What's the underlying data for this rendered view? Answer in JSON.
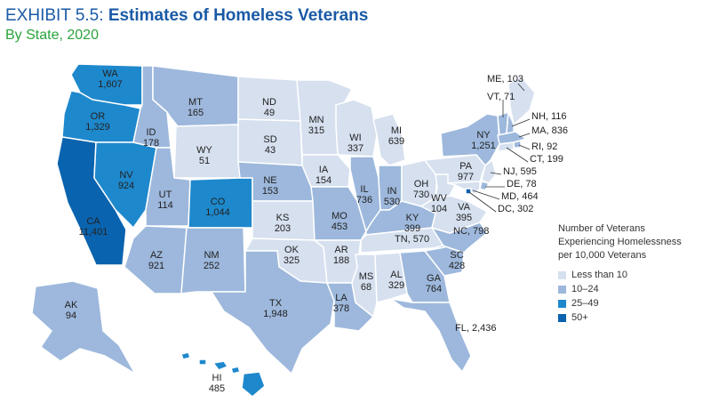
{
  "header": {
    "exhibit": "EXHIBIT 5.5:",
    "title": "Estimates of Homeless Veterans",
    "subtitle": "By State, 2020"
  },
  "colors": {
    "lt10": "#d6e0ef",
    "10to24": "#9db8dc",
    "25to49": "#1e88cc",
    "50plus": "#0a63ae",
    "title": "#1a5aa6",
    "subtitle": "#2aa33b"
  },
  "legend": {
    "title_lines": [
      "Number of Veterans",
      "Experiencing Homelessness",
      "per 10,000 Veterans"
    ],
    "items": [
      {
        "label": "Less than 10",
        "bin": "lt10"
      },
      {
        "label": "10–24",
        "bin": "10to24"
      },
      {
        "label": "25–49",
        "bin": "25to49"
      },
      {
        "label": "50+",
        "bin": "50plus"
      }
    ]
  },
  "states": [
    {
      "abbr": "WA",
      "value": "1,607",
      "bin": "25to49"
    },
    {
      "abbr": "OR",
      "value": "1,329",
      "bin": "25to49"
    },
    {
      "abbr": "CA",
      "value": "11,401",
      "bin": "50plus"
    },
    {
      "abbr": "NV",
      "value": "924",
      "bin": "25to49"
    },
    {
      "abbr": "ID",
      "value": "178",
      "bin": "10to24"
    },
    {
      "abbr": "MT",
      "value": "165",
      "bin": "10to24"
    },
    {
      "abbr": "WY",
      "value": "51",
      "bin": "lt10"
    },
    {
      "abbr": "UT",
      "value": "114",
      "bin": "10to24"
    },
    {
      "abbr": "CO",
      "value": "1,044",
      "bin": "25to49"
    },
    {
      "abbr": "AZ",
      "value": "921",
      "bin": "10to24"
    },
    {
      "abbr": "NM",
      "value": "252",
      "bin": "10to24"
    },
    {
      "abbr": "ND",
      "value": "49",
      "bin": "lt10"
    },
    {
      "abbr": "SD",
      "value": "43",
      "bin": "lt10"
    },
    {
      "abbr": "NE",
      "value": "153",
      "bin": "10to24"
    },
    {
      "abbr": "KS",
      "value": "203",
      "bin": "lt10"
    },
    {
      "abbr": "OK",
      "value": "325",
      "bin": "lt10"
    },
    {
      "abbr": "TX",
      "value": "1,948",
      "bin": "10to24"
    },
    {
      "abbr": "MN",
      "value": "315",
      "bin": "lt10"
    },
    {
      "abbr": "IA",
      "value": "154",
      "bin": "lt10"
    },
    {
      "abbr": "MO",
      "value": "453",
      "bin": "10to24"
    },
    {
      "abbr": "AR",
      "value": "188",
      "bin": "lt10"
    },
    {
      "abbr": "LA",
      "value": "378",
      "bin": "10to24"
    },
    {
      "abbr": "WI",
      "value": "337",
      "bin": "lt10"
    },
    {
      "abbr": "IL",
      "value": "736",
      "bin": "10to24"
    },
    {
      "abbr": "MS",
      "value": "68",
      "bin": "lt10"
    },
    {
      "abbr": "MI",
      "value": "639",
      "bin": "lt10"
    },
    {
      "abbr": "IN",
      "value": "530",
      "bin": "10to24"
    },
    {
      "abbr": "OH",
      "value": "730",
      "bin": "lt10"
    },
    {
      "abbr": "KY",
      "value": "399",
      "bin": "10to24"
    },
    {
      "abbr": "TN",
      "value": "570",
      "bin": "lt10"
    },
    {
      "abbr": "AL",
      "value": "329",
      "bin": "lt10"
    },
    {
      "abbr": "GA",
      "value": "764",
      "bin": "10to24"
    },
    {
      "abbr": "FL",
      "value": "2,436",
      "bin": "10to24"
    },
    {
      "abbr": "SC",
      "value": "428",
      "bin": "10to24"
    },
    {
      "abbr": "NC",
      "value": "798",
      "bin": "10to24"
    },
    {
      "abbr": "VA",
      "value": "395",
      "bin": "lt10"
    },
    {
      "abbr": "WV",
      "value": "104",
      "bin": "lt10"
    },
    {
      "abbr": "PA",
      "value": "977",
      "bin": "lt10"
    },
    {
      "abbr": "NY",
      "value": "1,251",
      "bin": "10to24"
    },
    {
      "abbr": "ME",
      "value": "103",
      "bin": "lt10"
    },
    {
      "abbr": "VT",
      "value": "71",
      "bin": "10to24"
    },
    {
      "abbr": "NH",
      "value": "116",
      "bin": "10to24"
    },
    {
      "abbr": "MA",
      "value": "836",
      "bin": "10to24"
    },
    {
      "abbr": "RI",
      "value": "92",
      "bin": "10to24"
    },
    {
      "abbr": "CT",
      "value": "199",
      "bin": "lt10"
    },
    {
      "abbr": "NJ",
      "value": "595",
      "bin": "lt10"
    },
    {
      "abbr": "DE",
      "value": "78",
      "bin": "10to24"
    },
    {
      "abbr": "MD",
      "value": "464",
      "bin": "lt10"
    },
    {
      "abbr": "DC",
      "value": "302",
      "bin": "50plus"
    },
    {
      "abbr": "AK",
      "value": "94",
      "bin": "10to24"
    },
    {
      "abbr": "HI",
      "value": "485",
      "bin": "25to49"
    }
  ]
}
